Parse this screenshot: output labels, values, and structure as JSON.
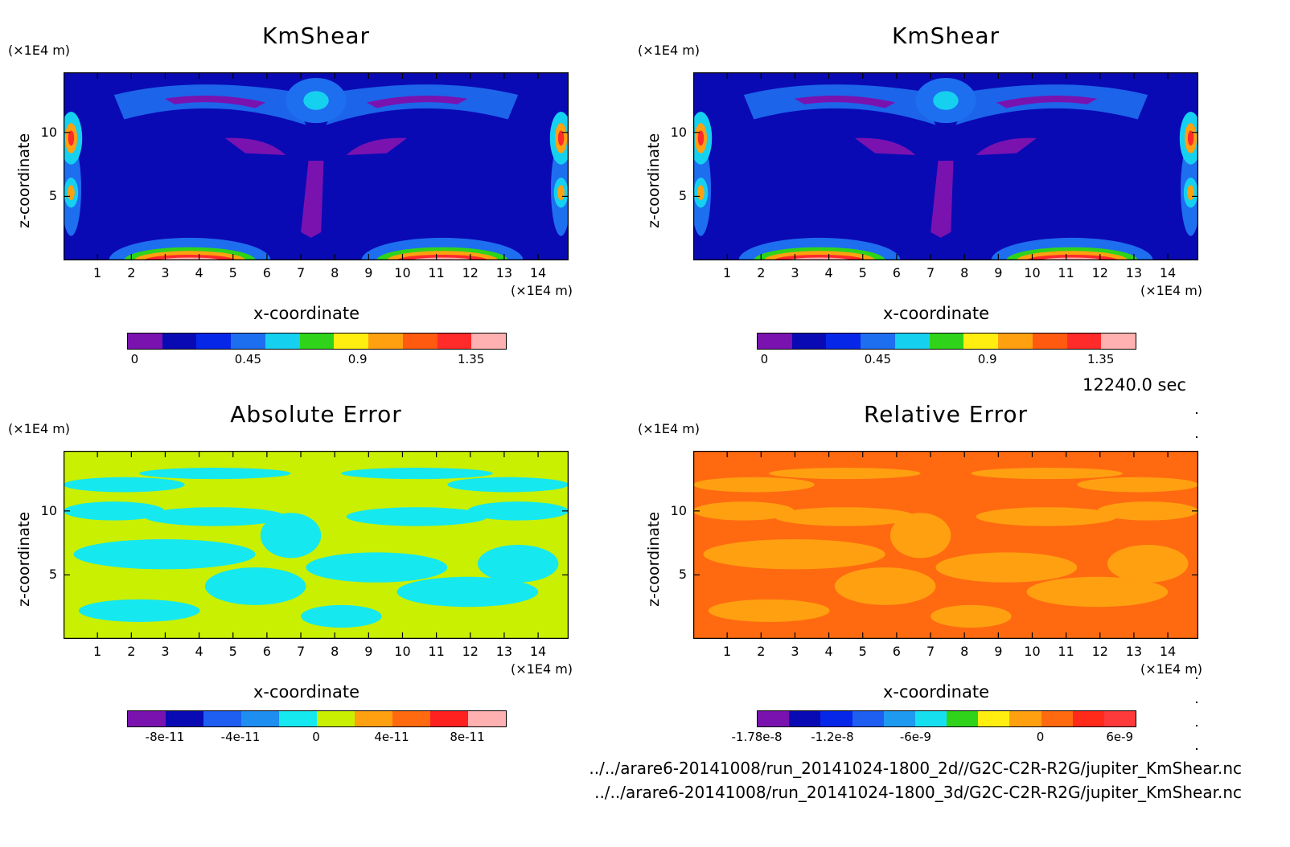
{
  "chart_data": [
    {
      "type": "heatmap",
      "title": "KmShear",
      "xlabel": "x-coordinate",
      "ylabel": "z-coordinate",
      "x_unit": "(×1E4 m)",
      "z_unit": "(×1E4 m)",
      "x_ticks": [
        "1",
        "2",
        "3",
        "4",
        "5",
        "6",
        "7",
        "8",
        "9",
        "10",
        "11",
        "12",
        "13",
        "14"
      ],
      "z_ticks": [
        "5",
        "10"
      ],
      "xlim": [
        0,
        14.9
      ],
      "zlim": [
        0,
        14.7
      ],
      "colorbar": {
        "colors": [
          "#7a12b0",
          "#0a0ab4",
          "#0626e8",
          "#1e6ef0",
          "#16d0f0",
          "#2fd41a",
          "#ffee10",
          "#ffa010",
          "#ff5a10",
          "#ff2a2a",
          "#ffb0b0"
        ],
        "tick_labels": [
          "0",
          "0.45",
          "0.9",
          "1.35"
        ]
      }
    },
    {
      "type": "heatmap",
      "title": "KmShear",
      "xlabel": "x-coordinate",
      "ylabel": "z-coordinate",
      "x_unit": "(×1E4 m)",
      "z_unit": "(×1E4 m)",
      "x_ticks": [
        "1",
        "2",
        "3",
        "4",
        "5",
        "6",
        "7",
        "8",
        "9",
        "10",
        "11",
        "12",
        "13",
        "14"
      ],
      "z_ticks": [
        "5",
        "10"
      ],
      "xlim": [
        0,
        14.9
      ],
      "zlim": [
        0,
        14.7
      ],
      "colorbar": {
        "colors": [
          "#7a12b0",
          "#0a0ab4",
          "#0626e8",
          "#1e6ef0",
          "#16d0f0",
          "#2fd41a",
          "#ffee10",
          "#ffa010",
          "#ff5a10",
          "#ff2a2a",
          "#ffb0b0"
        ],
        "tick_labels": [
          "0",
          "0.45",
          "0.9",
          "1.35"
        ]
      }
    },
    {
      "type": "heatmap",
      "title": "Absolute Error",
      "xlabel": "x-coordinate",
      "ylabel": "z-coordinate",
      "x_unit": "(×1E4 m)",
      "z_unit": "(×1E4 m)",
      "x_ticks": [
        "1",
        "2",
        "3",
        "4",
        "5",
        "6",
        "7",
        "8",
        "9",
        "10",
        "11",
        "12",
        "13",
        "14"
      ],
      "z_ticks": [
        "5",
        "10"
      ],
      "xlim": [
        0,
        14.9
      ],
      "zlim": [
        0,
        14.7
      ],
      "colorbar": {
        "colors": [
          "#7a12b0",
          "#0a0ab4",
          "#1e5ef0",
          "#1e8ef0",
          "#16e8f0",
          "#c8f000",
          "#ffa010",
          "#ff6a10",
          "#ff2020",
          "#ffb0b0"
        ],
        "tick_labels": [
          "-8e-11",
          "-4e-11",
          "0",
          "4e-11",
          "8e-11"
        ]
      }
    },
    {
      "type": "heatmap",
      "title": "Relative Error",
      "xlabel": "x-coordinate",
      "ylabel": "z-coordinate",
      "x_unit": "(×1E4 m)",
      "z_unit": "(×1E4 m)",
      "x_ticks": [
        "1",
        "2",
        "3",
        "4",
        "5",
        "6",
        "7",
        "8",
        "9",
        "10",
        "11",
        "12",
        "13",
        "14"
      ],
      "z_ticks": [
        "5",
        "10"
      ],
      "xlim": [
        0,
        14.9
      ],
      "zlim": [
        0,
        14.7
      ],
      "colorbar": {
        "colors": [
          "#7a12b0",
          "#0a0ab4",
          "#0626e8",
          "#1e5ef0",
          "#1e9af0",
          "#16e0f0",
          "#2fd41a",
          "#ffee10",
          "#ffa010",
          "#ff6a10",
          "#ff2a1a",
          "#ff3a3a"
        ],
        "tick_labels": [
          "-1.78e-8",
          "-1.2e-8",
          "-6e-9",
          "0",
          "6e-9"
        ]
      }
    }
  ],
  "time_label": "12240.0 sec",
  "files": [
    "../../arare6-20141008/run_20141024-1800_2d//G2C-C2R-R2G/jupiter_KmShear.nc",
    "../../arare6-20141008/run_20141024-1800_3d/G2C-C2R-R2G/jupiter_KmShear.nc"
  ],
  "colors": {
    "kmshear_background": "#0a0ab4",
    "abs_error_a": "#c8f000",
    "abs_error_b": "#16e8f0",
    "rel_error_a": "#ff6a10",
    "rel_error_b": "#ffa010"
  }
}
